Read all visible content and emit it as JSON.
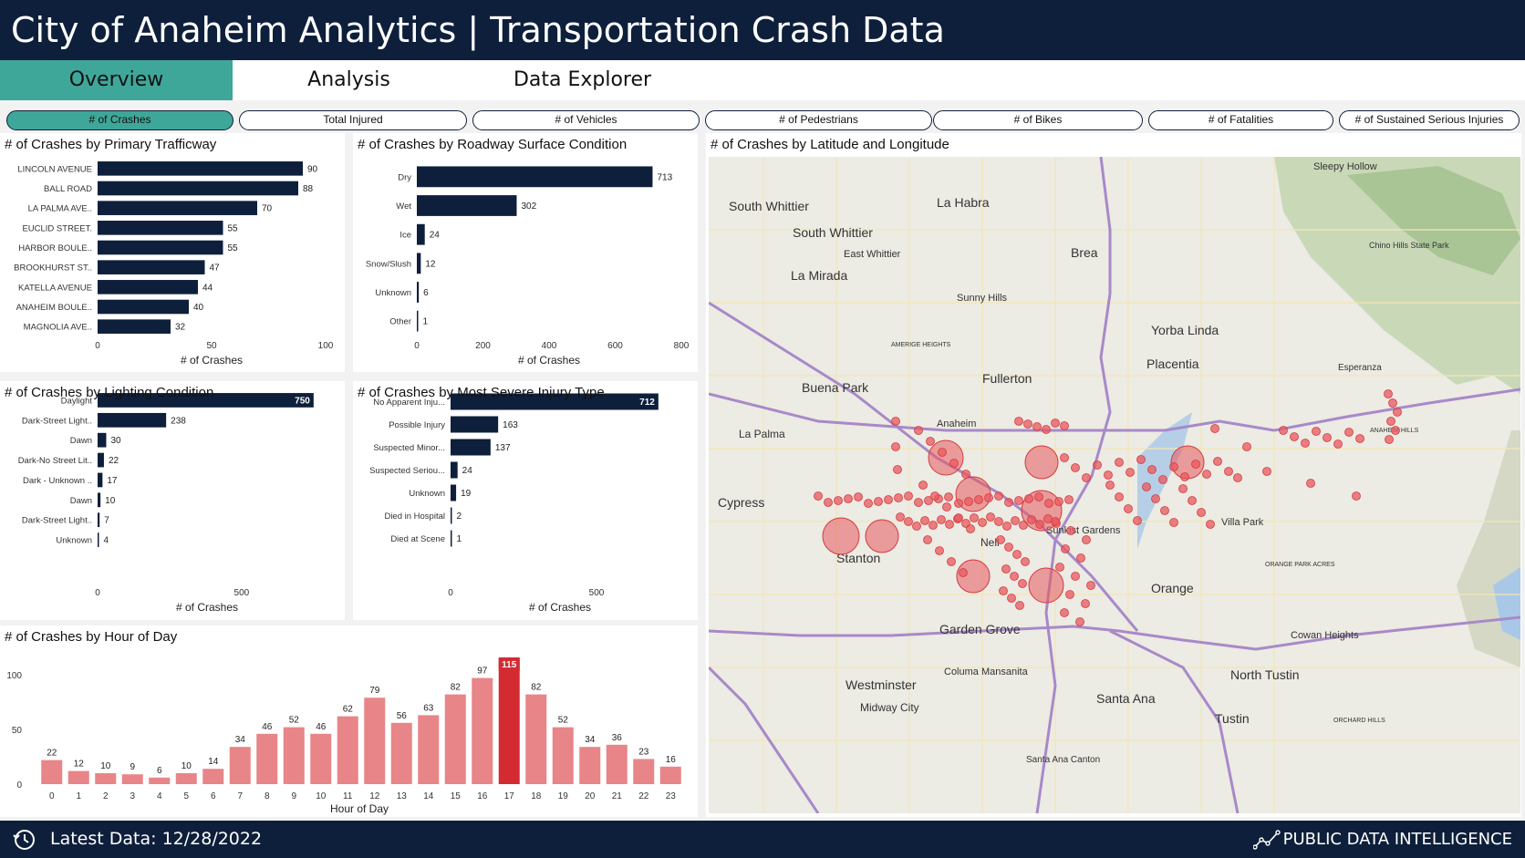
{
  "header": {
    "title": "City of Anaheim Analytics | Transportation Crash Data"
  },
  "tabs": [
    {
      "label": "Overview",
      "active": true
    },
    {
      "label": "Analysis",
      "active": false
    },
    {
      "label": "Data Explorer",
      "active": false
    }
  ],
  "metric_pills": [
    {
      "label": "# of Crashes",
      "active": true
    },
    {
      "label": "Total Injured",
      "active": false
    },
    {
      "label": "# of Vehicles",
      "active": false
    },
    {
      "label": "# of Pedestrians",
      "active": false
    },
    {
      "label": "# of Bikes",
      "active": false
    },
    {
      "label": "# of Fatalities",
      "active": false
    },
    {
      "label": "# of Sustained Serious Injuries",
      "active": false
    }
  ],
  "colors": {
    "navy": "#0e1f3b",
    "teal": "#3fa79a",
    "bar_dark": "#0e1f3b",
    "bar_red_light": "#e88588",
    "bar_red_peak": "#d42b32",
    "map_bubble": "#e8585d"
  },
  "chart_data": [
    {
      "id": "trafficway",
      "type": "bar",
      "orientation": "horizontal",
      "title": "# of Crashes by Primary Trafficway",
      "xlabel": "# of Crashes",
      "categories": [
        "LINCOLN AVENUE",
        "BALL ROAD",
        "LA PALMA AVE..",
        "EUCLID STREET.",
        "HARBOR BOULE..",
        "BROOKHURST ST..",
        "KATELLA AVENUE",
        "ANAHEIM BOULE..",
        "MAGNOLIA AVE.."
      ],
      "values": [
        90,
        88,
        70,
        55,
        55,
        47,
        44,
        40,
        32
      ],
      "xlim": [
        0,
        100
      ],
      "xticks": [
        0,
        50,
        100
      ]
    },
    {
      "id": "surface",
      "type": "bar",
      "orientation": "horizontal",
      "title": "# of Crashes by Roadway Surface Condition",
      "xlabel": "# of Crashes",
      "categories": [
        "Dry",
        "Wet",
        "Ice",
        "Snow/Slush",
        "Unknown",
        "Other"
      ],
      "values": [
        713,
        302,
        24,
        12,
        6,
        1
      ],
      "xlim": [
        0,
        800
      ],
      "xticks": [
        0,
        200,
        400,
        600,
        800
      ]
    },
    {
      "id": "lighting",
      "type": "bar",
      "orientation": "horizontal",
      "title": "# of Crashes by Lighting Condition",
      "xlabel": "# of Crashes",
      "categories": [
        "Daylight",
        "Dark-Street Light..",
        "Dawn",
        "Dark-No Street Lit..",
        "Dark - Unknown ..",
        "Dawn",
        "Dark-Street Light..",
        "Unknown"
      ],
      "values": [
        750,
        238,
        30,
        22,
        17,
        10,
        7,
        4
      ],
      "xlim": [
        0,
        760
      ],
      "xticks": [
        0,
        500
      ]
    },
    {
      "id": "injury",
      "type": "bar",
      "orientation": "horizontal",
      "title": "# of Crashes by Most Severe Injury Type",
      "xlabel": "# of Crashes",
      "categories": [
        "No Apparent Inju...",
        "Possible Injury",
        "Suspected Minor...",
        "Suspected Seriou...",
        "Unknown",
        "Died in Hospital",
        "Died at Scene"
      ],
      "values": [
        712,
        163,
        137,
        24,
        19,
        2,
        1
      ],
      "xlim": [
        0,
        750
      ],
      "xticks": [
        0,
        500
      ]
    },
    {
      "id": "hour",
      "type": "bar",
      "orientation": "vertical",
      "title": "# of Crashes by Hour of Day",
      "xlabel": "Hour of Day",
      "categories": [
        "0",
        "1",
        "2",
        "3",
        "4",
        "5",
        "6",
        "7",
        "8",
        "9",
        "10",
        "11",
        "12",
        "13",
        "14",
        "15",
        "16",
        "17",
        "18",
        "19",
        "20",
        "21",
        "22",
        "23"
      ],
      "values": [
        22,
        12,
        10,
        9,
        6,
        10,
        14,
        34,
        46,
        52,
        46,
        62,
        79,
        56,
        63,
        82,
        97,
        115,
        82,
        52,
        34,
        36,
        23,
        16
      ],
      "ylim": [
        0,
        100
      ],
      "yticks": [
        0,
        50,
        100
      ]
    }
  ],
  "map": {
    "title": "# of Crashes by Latitude and Longitude",
    "places": [
      "South Whittier",
      "La Habra",
      "South Whittier",
      "East Whittier",
      "Brea",
      "La Mirada",
      "Sunny Hills",
      "Sleepy Hollow",
      "Chino Hills State Park",
      "Yorba Linda",
      "Placentia",
      "Buena Park",
      "Fullerton",
      "Esperanza",
      "La Palma",
      "Anaheim",
      "Cypress",
      "Stanton",
      "Sunkist Gardens",
      "Villa Park",
      "Nell",
      "Orange",
      "Garden Grove",
      "Cowan Heights",
      "Westminster",
      "Columa Mansanita",
      "North Tustin",
      "Midway City",
      "Santa Ana",
      "Tustin",
      "Santa Ana Canton",
      "ANAHEIM HILLS",
      "ORANGE PARK ACRES",
      "ORCHARD HILLS",
      "AMERIGE HEIGHTS"
    ]
  },
  "footer": {
    "latest": "Latest Data: 12/28/2022",
    "brand": "PUBLIC DATA INTELLIGENCE"
  }
}
